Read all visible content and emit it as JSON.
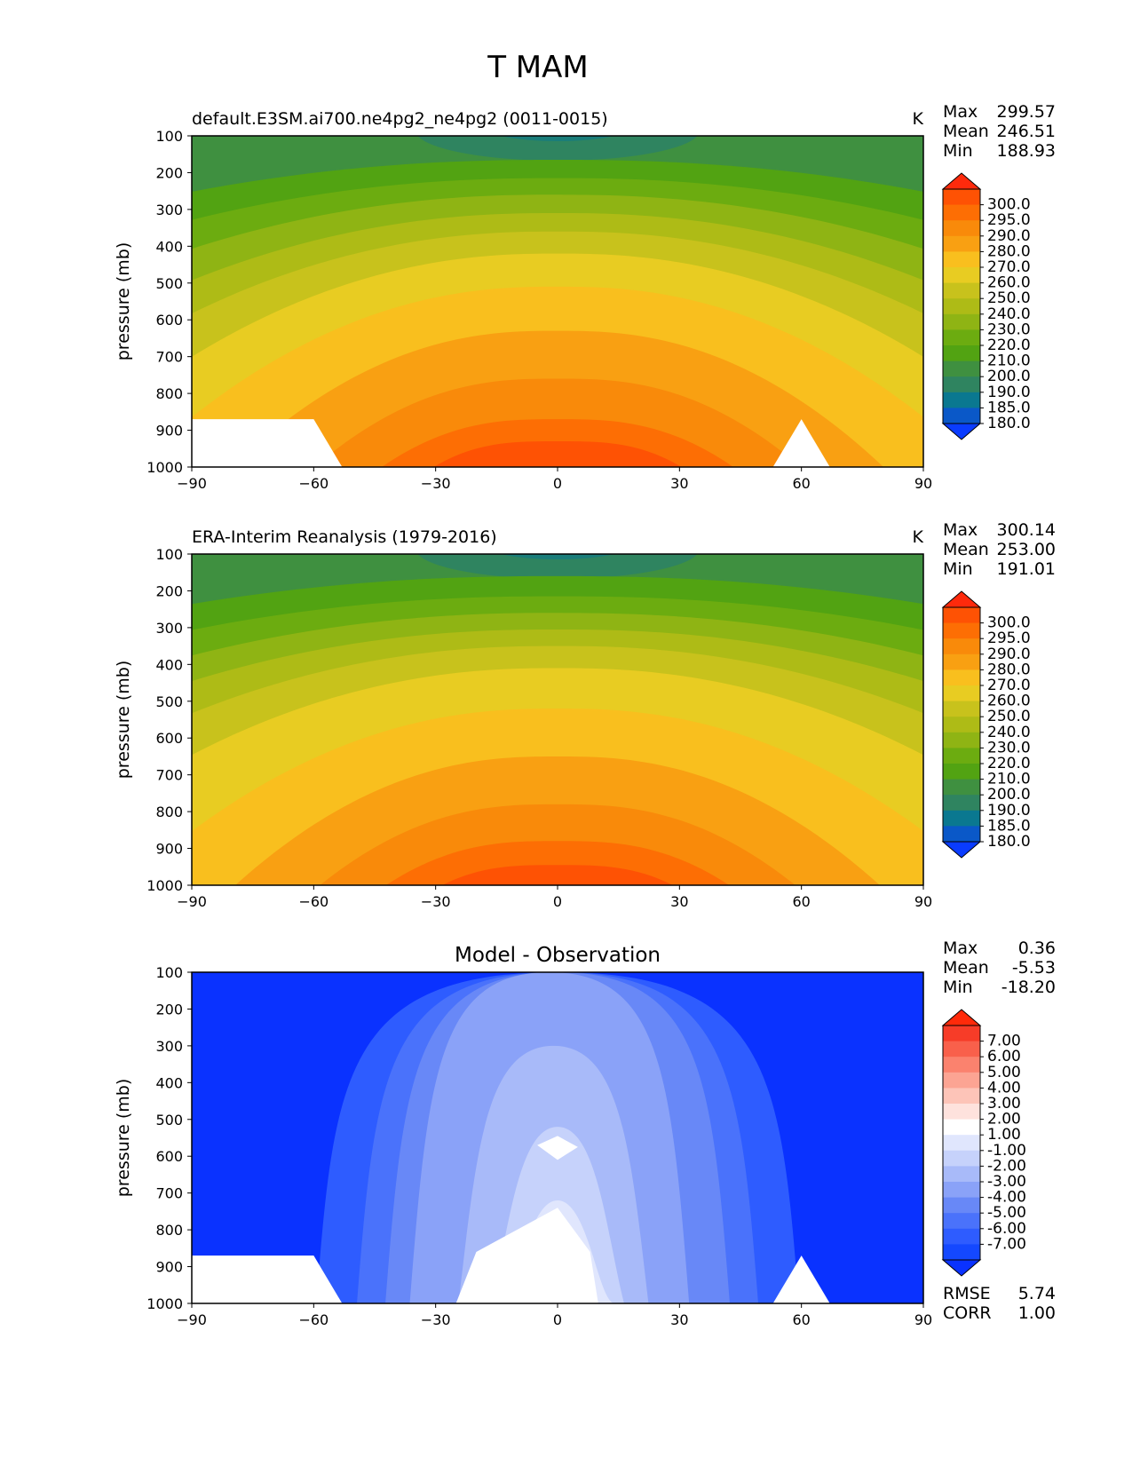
{
  "figure": {
    "title": "T MAM"
  },
  "chart_data": [
    {
      "type": "contour",
      "title": "default.E3SM.ai700.ne4pg2_ne4pg2 (0011-0015)",
      "units": "K",
      "xlabel": "",
      "ylabel": "pressure (mb)",
      "xlim": [
        -90,
        90
      ],
      "ylim": [
        1000,
        100
      ],
      "xticks": [
        "−90",
        "−60",
        "−30",
        "0",
        "30",
        "60",
        "90"
      ],
      "yticks": [
        "100",
        "200",
        "300",
        "400",
        "500",
        "600",
        "700",
        "800",
        "900",
        "1000"
      ],
      "stats": [
        {
          "label": "Max",
          "value": "299.57"
        },
        {
          "label": "Mean",
          "value": "246.51"
        },
        {
          "label": "Min",
          "value": "188.93"
        }
      ],
      "levels": [
        "180.0",
        "185.0",
        "190.0",
        "200.0",
        "210.0",
        "220.0",
        "230.0",
        "240.0",
        "250.0",
        "260.0",
        "270.0",
        "280.0",
        "290.0",
        "295.0",
        "300.0"
      ],
      "colors": [
        "#0a3cff",
        "#0a58c8",
        "#0a7890",
        "#2f8460",
        "#3f9040",
        "#52a312",
        "#6cac10",
        "#8fb414",
        "#aebb16",
        "#c8c21c",
        "#e8cc22",
        "#f9bf1e",
        "#f9a012",
        "#f98a0a",
        "#fd6e04",
        "#fe5204",
        "#fe2a0c"
      ],
      "bands_deg_from_equator": [
        {
          "level": 0,
          "lat": 0,
          "top": 1000,
          "bottom": 1000
        },
        {
          "level": 1,
          "top_at_equator": 950
        },
        {
          "level": 2,
          "top_at_equator": 880
        },
        {
          "level": 3,
          "top_at_equator": 790
        },
        {
          "level": 4,
          "top_at_equator": 670
        },
        {
          "level": 5,
          "top_at_equator": 520
        },
        {
          "level": 6,
          "top_at_equator": 400
        },
        {
          "level": 7,
          "top_at_equator": 305
        },
        {
          "level": 8,
          "top_at_equator": 235
        },
        {
          "level": 9,
          "top_at_equator": 180
        },
        {
          "level": 10,
          "top_at_equator": 135
        }
      ]
    },
    {
      "type": "contour",
      "title": "ERA-Interim Reanalysis (1979-2016)",
      "units": "K",
      "ylabel": "pressure (mb)",
      "xlim": [
        -90,
        90
      ],
      "ylim": [
        1000,
        100
      ],
      "xticks": [
        "−90",
        "−60",
        "−30",
        "0",
        "30",
        "60",
        "90"
      ],
      "yticks": [
        "100",
        "200",
        "300",
        "400",
        "500",
        "600",
        "700",
        "800",
        "900",
        "1000"
      ],
      "stats": [
        {
          "label": "Max",
          "value": "300.14"
        },
        {
          "label": "Mean",
          "value": "253.00"
        },
        {
          "label": "Min",
          "value": "191.01"
        }
      ],
      "levels": [
        "180.0",
        "185.0",
        "190.0",
        "200.0",
        "210.0",
        "220.0",
        "230.0",
        "240.0",
        "250.0",
        "260.0",
        "270.0",
        "280.0",
        "290.0",
        "295.0",
        "300.0"
      ]
    },
    {
      "type": "contour",
      "title": "Model - Observation",
      "units": "",
      "ylabel": "pressure (mb)",
      "xlim": [
        -90,
        90
      ],
      "ylim": [
        1000,
        100
      ],
      "xticks": [
        "−90",
        "−60",
        "−30",
        "0",
        "30",
        "60",
        "90"
      ],
      "yticks": [
        "100",
        "200",
        "300",
        "400",
        "500",
        "600",
        "700",
        "800",
        "900",
        "1000"
      ],
      "stats": [
        {
          "label": "Max",
          "value": "0.36"
        },
        {
          "label": "Mean",
          "value": "-5.53"
        },
        {
          "label": "Min",
          "value": "-18.20"
        }
      ],
      "levels": [
        "-7.00",
        "-6.00",
        "-5.00",
        "-4.00",
        "-3.00",
        "-2.00",
        "-1.00",
        "1.00",
        "2.00",
        "3.00",
        "4.00",
        "5.00",
        "6.00",
        "7.00"
      ],
      "colors": [
        "#0a32ff",
        "#1448ff",
        "#2e5cff",
        "#4a72fb",
        "#6888f7",
        "#8aa2f8",
        "#a8baf9",
        "#c6d2fb",
        "#e0e6fd",
        "#ffffff",
        "#fee2dd",
        "#fdc4b8",
        "#fca493",
        "#fb826e",
        "#f9604b",
        "#f73c28",
        "#ff2a0a"
      ],
      "error_stats": [
        {
          "label": "RMSE",
          "value": "5.74"
        },
        {
          "label": "CORR",
          "value": "1.00"
        }
      ]
    }
  ]
}
